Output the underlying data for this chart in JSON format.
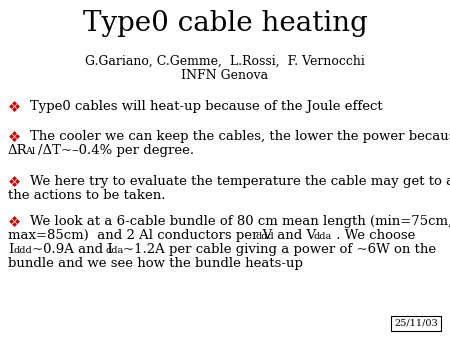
{
  "title": "Type0 cable heating",
  "authors": "G.Gariano, C.Gemme,  L.Rossi,  F. Vernocchi",
  "institution": "INFN Genova",
  "date": "25/11/03",
  "bullet_color": "#cc0000",
  "bg_color": "#ffffff",
  "text_color": "#000000",
  "title_fontsize": 20,
  "author_fontsize": 9,
  "bullet_fontsize": 9.5,
  "sub_fontsize": 7.0
}
